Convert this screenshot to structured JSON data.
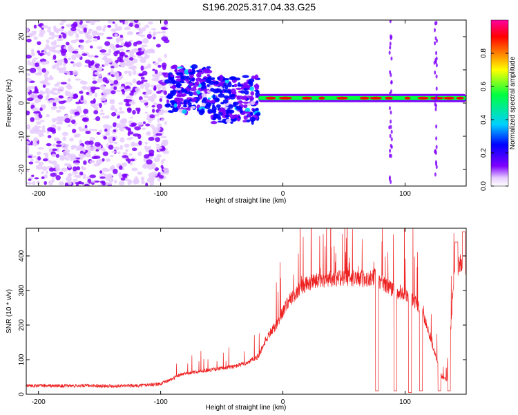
{
  "title": "S196.2025.317.04.33.G25",
  "chart_data": [
    {
      "type": "heatmap",
      "name": "spectrogram",
      "xlabel": "Height of straight line (km)",
      "ylabel": "Frequency (Hz)",
      "xlim": [
        -210,
        150
      ],
      "ylim": [
        -25,
        25
      ],
      "xticks": [
        -200,
        -100,
        0,
        100
      ],
      "yticks": [
        -20,
        -10,
        0,
        10,
        20
      ],
      "colorbar": {
        "label": "Normalized spectral amplitude",
        "range": [
          0.0,
          1.0
        ],
        "ticks": [
          "0.0",
          "0.2",
          "0.4",
          "0.6",
          "0.8"
        ],
        "colors": [
          "#ffffff",
          "#e6ccff",
          "#7f00ff",
          "#0000ff",
          "#00d0ff",
          "#00ff40",
          "#ffff00",
          "#ff8000",
          "#ff0000",
          "#ff00a0"
        ]
      },
      "features": [
        {
          "label": "noise",
          "x_range": [
            -210,
            -95
          ],
          "frequency_range": [
            -25,
            25
          ],
          "amplitude": 0.15
        },
        {
          "label": "spray",
          "x_range": [
            -95,
            -20
          ],
          "frequency_range": [
            -8,
            10
          ],
          "amplitude": 0.3
        },
        {
          "label": "tone",
          "x_range": [
            -20,
            150
          ],
          "frequency_hz": 1.5,
          "amplitude": 0.9
        },
        {
          "label": "spike",
          "x": 88,
          "frequency_range": [
            -25,
            25
          ],
          "amplitude": 0.2
        },
        {
          "label": "spike",
          "x": 125,
          "frequency_range": [
            -25,
            25
          ],
          "amplitude": 0.2
        }
      ]
    },
    {
      "type": "line",
      "name": "snr",
      "xlabel": "Height of straight line (km)",
      "ylabel": "SNR (10 * v/v)",
      "xlim": [
        -210,
        150
      ],
      "ylim": [
        0,
        480
      ],
      "xticks": [
        -200,
        -100,
        0,
        100
      ],
      "yticks": [
        0,
        100,
        200,
        300,
        400
      ],
      "series": [
        {
          "name": "SNR",
          "color": "#ee2222",
          "x": [
            -210,
            -200,
            -180,
            -160,
            -140,
            -120,
            -100,
            -90,
            -85,
            -80,
            -70,
            -60,
            -50,
            -40,
            -30,
            -20,
            -15,
            -10,
            -5,
            0,
            5,
            10,
            15,
            20,
            30,
            40,
            50,
            60,
            70,
            75,
            80,
            85,
            90,
            100,
            110,
            115,
            120,
            125,
            130,
            135,
            140,
            145,
            150
          ],
          "y": [
            25,
            25,
            24,
            25,
            24,
            25,
            30,
            45,
            55,
            60,
            65,
            70,
            75,
            80,
            90,
            110,
            150,
            180,
            200,
            240,
            270,
            290,
            310,
            320,
            330,
            335,
            335,
            335,
            335,
            340,
            325,
            315,
            300,
            290,
            260,
            230,
            170,
            110,
            50,
            40,
            350,
            380,
            360
          ],
          "spikes": [
            {
              "x": 77,
              "y": 10
            },
            {
              "x": 92,
              "y": 10
            },
            {
              "x": 104,
              "y": 5
            },
            {
              "x": 113,
              "y": 10
            },
            {
              "x": 128,
              "y": 10
            },
            {
              "x": 136,
              "y": 10
            },
            {
              "x": 142,
              "y": 440
            },
            {
              "x": 148,
              "y": 470
            }
          ]
        }
      ]
    }
  ]
}
